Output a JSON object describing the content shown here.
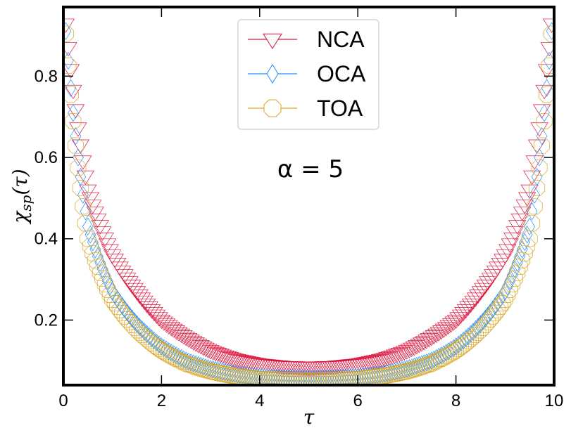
{
  "chart_data": {
    "type": "scatter",
    "title": "",
    "xlabel": "τ",
    "ylabel": "χsp(τ)",
    "ylabel_main": "χ",
    "ylabel_sub": "sp",
    "ylabel_arg": "(τ)",
    "xlim": [
      0,
      10
    ],
    "ylim": [
      0.04,
      0.97
    ],
    "x_ticks": [
      0,
      2,
      4,
      6,
      8,
      10
    ],
    "x_tick_labels": [
      "0",
      "2",
      "4",
      "6",
      "8",
      "10"
    ],
    "y_ticks": [
      0.2,
      0.4,
      0.6,
      0.8
    ],
    "y_tick_labels": [
      "0.2",
      "0.4",
      "0.6",
      "0.8"
    ],
    "grid": false,
    "legend_position": "top-center",
    "annotation": "α = 5",
    "tau_range": [
      0,
      10
    ],
    "points_per_series": 201,
    "series": [
      {
        "name": "NCA",
        "marker": "triangle-down",
        "color": "#dc143c",
        "anchors_tau": [
          0,
          0.5,
          1,
          1.5,
          2,
          2.5,
          3,
          3.5,
          4,
          4.5,
          5
        ],
        "anchors_value": [
          0.99,
          0.52,
          0.36,
          0.27,
          0.2,
          0.158,
          0.125,
          0.104,
          0.092,
          0.086,
          0.084
        ]
      },
      {
        "name": "OCA",
        "marker": "diamond",
        "color": "#1e90ff",
        "anchors_tau": [
          0,
          0.5,
          1,
          1.5,
          2,
          2.5,
          3,
          3.5,
          4,
          4.5,
          5
        ],
        "anchors_value": [
          0.99,
          0.43,
          0.27,
          0.19,
          0.135,
          0.1,
          0.08,
          0.067,
          0.06,
          0.057,
          0.056
        ]
      },
      {
        "name": "TOA",
        "marker": "octagon",
        "color": "#daa520",
        "anchors_tau": [
          0,
          0.5,
          1,
          1.5,
          2,
          2.5,
          3,
          3.5,
          4,
          4.5,
          5
        ],
        "anchors_value": [
          0.99,
          0.4,
          0.25,
          0.175,
          0.125,
          0.093,
          0.074,
          0.062,
          0.055,
          0.052,
          0.051
        ]
      }
    ]
  }
}
